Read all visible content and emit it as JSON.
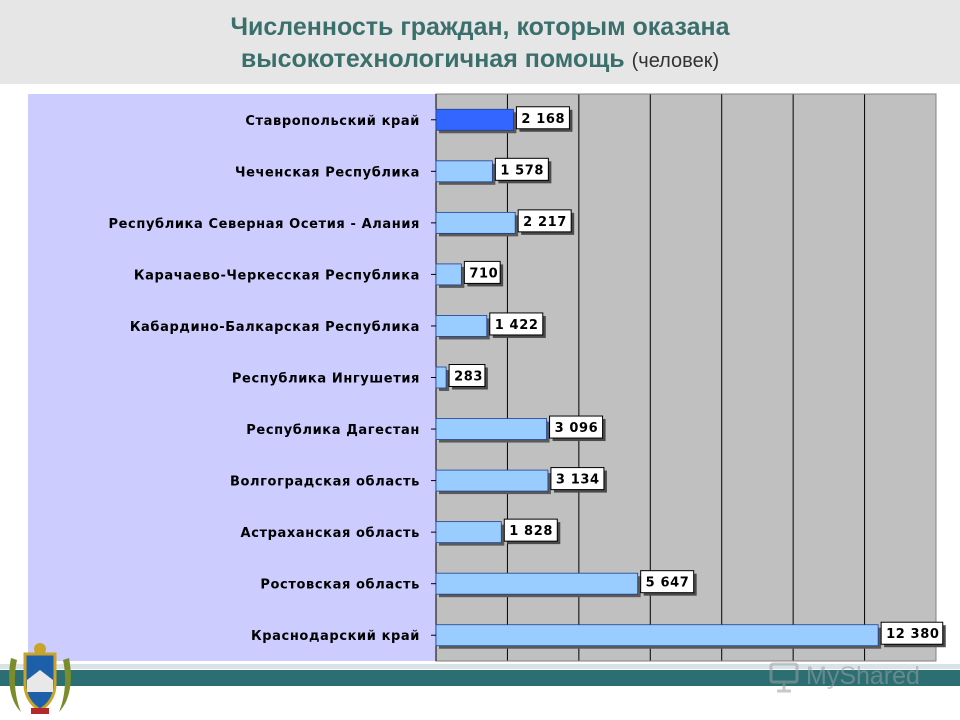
{
  "header": {
    "title_line1": "Численность граждан, которым оказана",
    "title_line2": "высокотехнологичная помощь",
    "unit": "(человек)"
  },
  "watermark": {
    "text": "MyShared",
    "icon": "presentation-screen-icon"
  },
  "emblem": {
    "icon": "coat-of-arms-icon"
  },
  "colors": {
    "header_bg": "#e6e6e6",
    "title": "#3a6f6c",
    "plot_bg": "#c0c0c0",
    "label_panel_bg": "#ccccff",
    "bar_highlight": "#3366ff",
    "bar_normal": "#99ccff",
    "bottom_bar": "#2c6f73"
  },
  "chart_data": {
    "type": "bar",
    "orientation": "horizontal",
    "categories": [
      "Ставропольский край",
      "Чеченская Республика",
      "Республика Северная Осетия - Алания",
      "Карачаево-Черкесская Республика",
      "Кабардино-Балкарская Республика",
      "Республика Ингушетия",
      "Республика Дагестан",
      "Волгоградская область",
      "Астраханская область",
      "Ростовская область",
      "Краснодарский край"
    ],
    "values": [
      2168,
      1578,
      2217,
      710,
      1422,
      283,
      3096,
      3134,
      1828,
      5647,
      12380
    ],
    "value_labels": [
      "2 168",
      "1 578",
      "2 217",
      "710",
      "1 422",
      "283",
      "3 096",
      "3 134",
      "1 828",
      "5 647",
      "12 380"
    ],
    "highlight_index": 0,
    "xlim": [
      0,
      14000
    ],
    "x_gridline_step": 2000,
    "grid": true,
    "legend": "none"
  }
}
